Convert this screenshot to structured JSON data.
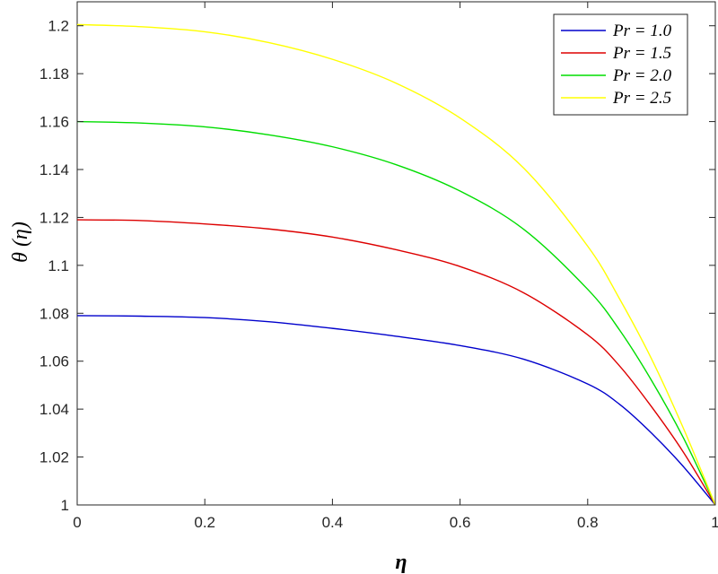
{
  "chart_data": {
    "type": "line",
    "xlabel": "η",
    "ylabel": "θ (η)",
    "xlim": [
      0,
      1
    ],
    "ylim": [
      1,
      1.21
    ],
    "xticks": [
      "0",
      "0.2",
      "0.4",
      "0.6",
      "0.8",
      "1"
    ],
    "yticks": [
      "1",
      "1.02",
      "1.04",
      "1.06",
      "1.08",
      "1.1",
      "1.12",
      "1.14",
      "1.16",
      "1.18",
      "1.2"
    ],
    "grid": false,
    "legend_position": "top-right",
    "x": [
      0,
      0.1,
      0.2,
      0.3,
      0.4,
      0.5,
      0.6,
      0.7,
      0.8,
      0.85,
      0.9,
      0.95,
      1.0
    ],
    "series": [
      {
        "name": "Pr = 1.0",
        "color": "#0000cc",
        "values": [
          1.079,
          1.0788,
          1.0782,
          1.0765,
          1.0737,
          1.0704,
          1.0665,
          1.0608,
          1.0505,
          1.042,
          1.03,
          1.016,
          1.0
        ]
      },
      {
        "name": "Pr = 1.5",
        "color": "#dd0000",
        "values": [
          1.119,
          1.1187,
          1.1173,
          1.1152,
          1.1118,
          1.1065,
          1.0995,
          1.0885,
          1.071,
          1.058,
          1.041,
          1.022,
          1.0
        ]
      },
      {
        "name": "Pr = 2.0",
        "color": "#00dd00",
        "values": [
          1.16,
          1.1594,
          1.1578,
          1.1545,
          1.1495,
          1.142,
          1.131,
          1.115,
          1.09,
          1.073,
          1.052,
          1.028,
          1.0
        ]
      },
      {
        "name": "Pr = 2.5",
        "color": "#ffff00",
        "values": [
          1.2005,
          1.1996,
          1.1975,
          1.193,
          1.186,
          1.176,
          1.1615,
          1.1405,
          1.108,
          1.086,
          1.061,
          1.032,
          1.0
        ]
      }
    ]
  }
}
